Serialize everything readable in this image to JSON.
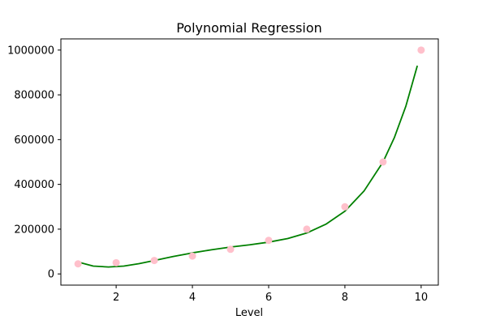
{
  "chart_data": {
    "type": "scatter",
    "title": "Polynomial Regression",
    "xlabel": "Level",
    "ylabel": "",
    "xlim": [
      0.55,
      10.45
    ],
    "ylim": [
      -50000,
      1050000
    ],
    "x_ticks": [
      2,
      4,
      6,
      8,
      10
    ],
    "y_ticks": [
      0,
      200000,
      400000,
      600000,
      800000,
      1000000
    ],
    "grid": false,
    "legend": "none",
    "series": [
      {
        "kind": "scatter",
        "color": "#ffc0cb",
        "points": [
          {
            "x": 1,
            "y": 45000
          },
          {
            "x": 2,
            "y": 50000
          },
          {
            "x": 3,
            "y": 60000
          },
          {
            "x": 4,
            "y": 80000
          },
          {
            "x": 5,
            "y": 110000
          },
          {
            "x": 6,
            "y": 150000
          },
          {
            "x": 7,
            "y": 200000
          },
          {
            "x": 8,
            "y": 300000
          },
          {
            "x": 9,
            "y": 500000
          },
          {
            "x": 10,
            "y": 1000000
          }
        ]
      },
      {
        "kind": "line",
        "color": "#008000",
        "points": [
          {
            "x": 1.0,
            "y": 53000
          },
          {
            "x": 1.4,
            "y": 35000
          },
          {
            "x": 1.8,
            "y": 31000
          },
          {
            "x": 2.2,
            "y": 35000
          },
          {
            "x": 2.6,
            "y": 46000
          },
          {
            "x": 3.0,
            "y": 60000
          },
          {
            "x": 3.5,
            "y": 78000
          },
          {
            "x": 4.0,
            "y": 94000
          },
          {
            "x": 4.5,
            "y": 108000
          },
          {
            "x": 5.0,
            "y": 120000
          },
          {
            "x": 5.5,
            "y": 130000
          },
          {
            "x": 6.0,
            "y": 142000
          },
          {
            "x": 6.5,
            "y": 158000
          },
          {
            "x": 7.0,
            "y": 183000
          },
          {
            "x": 7.5,
            "y": 222000
          },
          {
            "x": 8.0,
            "y": 280000
          },
          {
            "x": 8.5,
            "y": 370000
          },
          {
            "x": 9.0,
            "y": 500000
          },
          {
            "x": 9.3,
            "y": 610000
          },
          {
            "x": 9.6,
            "y": 750000
          },
          {
            "x": 9.9,
            "y": 930000
          }
        ]
      }
    ]
  }
}
